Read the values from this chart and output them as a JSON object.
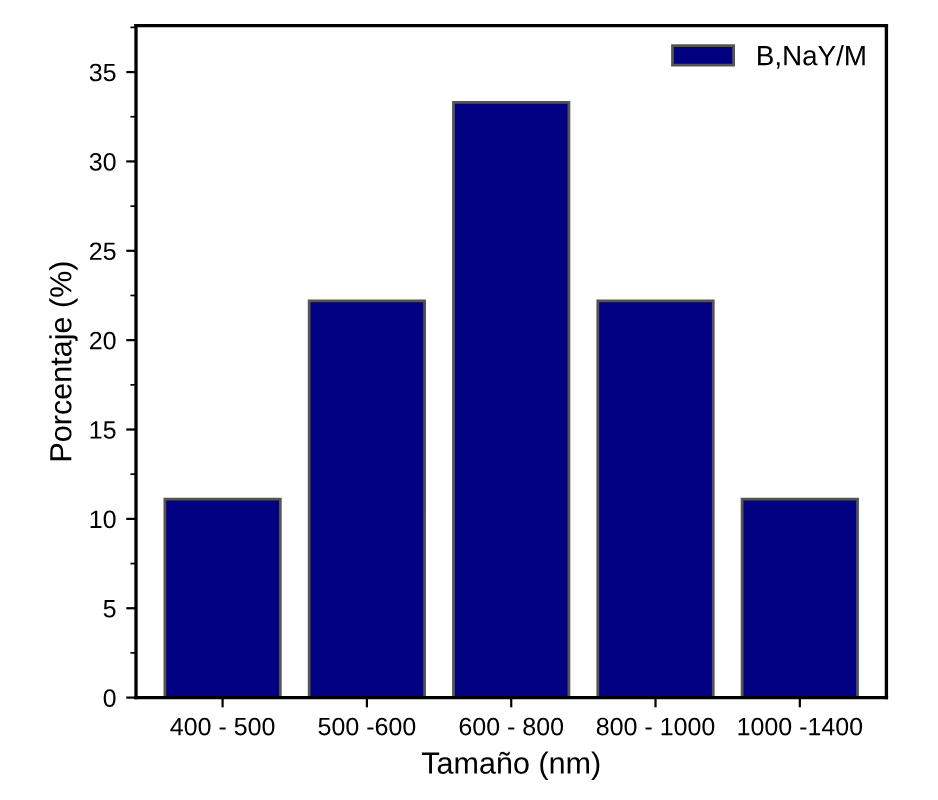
{
  "chart_data": {
    "type": "bar",
    "xlabel": "Tamaño (nm)",
    "ylabel": "Porcentaje (%)",
    "categories": [
      "400 - 500",
      "500 -600",
      "600 - 800",
      "800 - 1000",
      "1000 -1400"
    ],
    "series": [
      {
        "name": "B,NaY/M",
        "color": "#000080",
        "values": [
          11.1,
          22.2,
          33.3,
          22.2,
          11.1
        ]
      }
    ],
    "ylim": [
      0,
      37.6
    ],
    "yticks": [
      0,
      5,
      10,
      15,
      20,
      25,
      30,
      35
    ],
    "grid": false,
    "legend": "top right"
  }
}
